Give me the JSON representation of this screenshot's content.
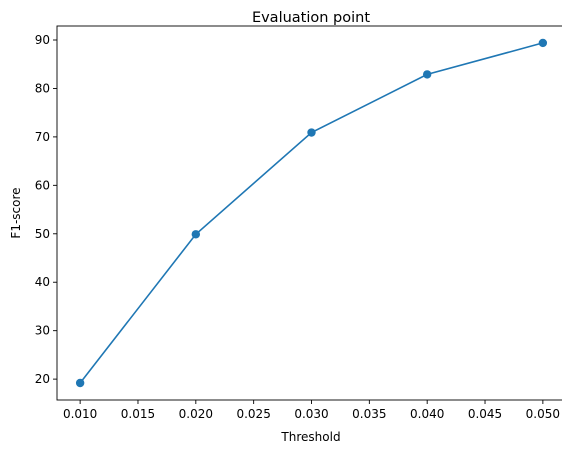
{
  "chart_data": {
    "type": "line",
    "title": "Evaluation point",
    "xlabel": "Threshold",
    "ylabel": "F1-score",
    "x": [
      0.01,
      0.02,
      0.03,
      0.04,
      0.05
    ],
    "series": [
      {
        "values": [
          19.2,
          49.9,
          70.9,
          82.9,
          89.4
        ],
        "color": "#1f77b4",
        "marker": "circle"
      }
    ],
    "xlim": [
      0.008,
      0.052
    ],
    "ylim": [
      15.69,
      92.89
    ],
    "xticks": [
      0.01,
      0.015,
      0.02,
      0.025,
      0.03,
      0.035,
      0.04,
      0.045,
      0.05
    ],
    "xtick_labels": [
      "0.010",
      "0.015",
      "0.020",
      "0.025",
      "0.030",
      "0.035",
      "0.040",
      "0.045",
      "0.050"
    ],
    "yticks": [
      20,
      30,
      40,
      50,
      60,
      70,
      80,
      90
    ],
    "ytick_labels": [
      "20",
      "30",
      "40",
      "50",
      "60",
      "70",
      "80",
      "90"
    ],
    "grid": false,
    "legend": "none"
  }
}
